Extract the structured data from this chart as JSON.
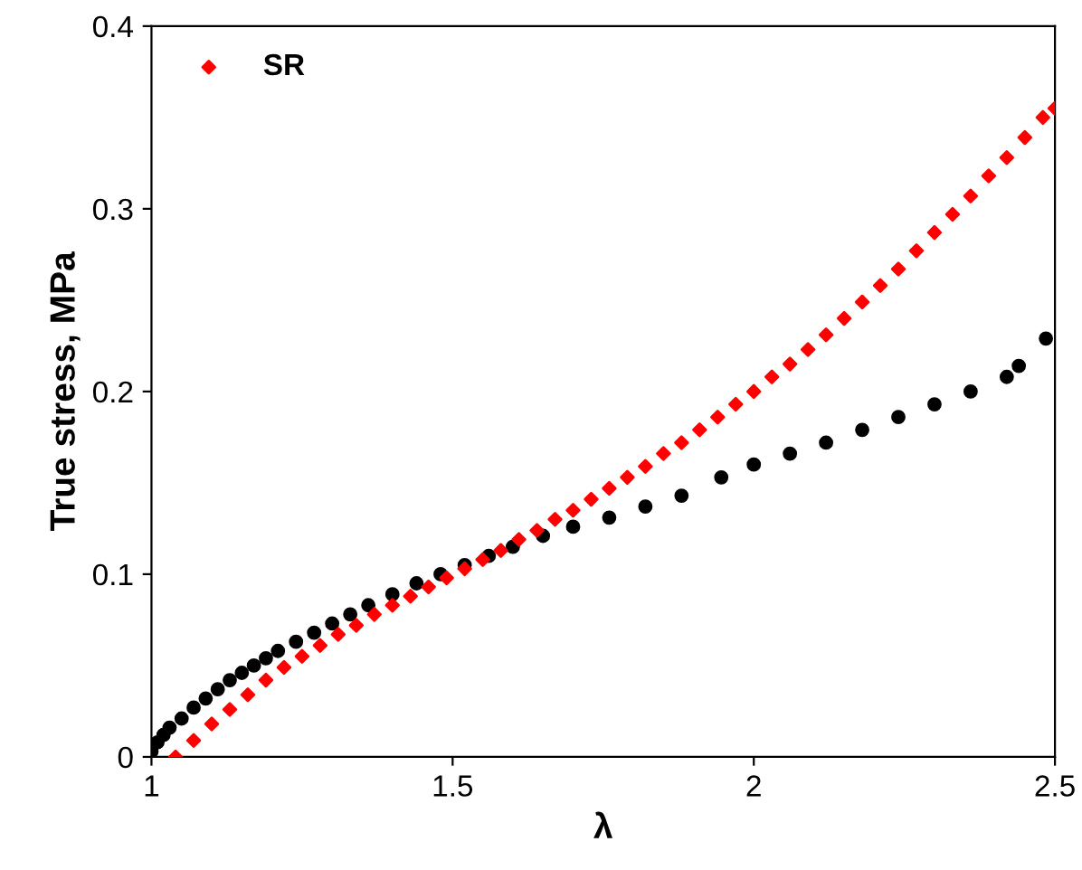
{
  "chart_data": {
    "type": "scatter",
    "xlabel": "λ",
    "ylabel": "True stress, MPa",
    "xlim": [
      1,
      2.5
    ],
    "xticks": [
      1,
      1.5,
      2,
      2.5
    ],
    "ylim": [
      0,
      0.4
    ],
    "yticks": [
      0,
      0.1,
      0.2,
      0.3,
      0.4
    ],
    "grid": false,
    "legend": "top left",
    "series": [
      {
        "color": "#000000",
        "marker": "circle",
        "x": [
          1.0,
          1.01,
          1.02,
          1.03,
          1.05,
          1.07,
          1.09,
          1.11,
          1.13,
          1.15,
          1.17,
          1.19,
          1.21,
          1.24,
          1.27,
          1.3,
          1.33,
          1.36,
          1.4,
          1.44,
          1.48,
          1.52,
          1.56,
          1.6,
          1.65,
          1.7,
          1.76,
          1.82,
          1.88,
          1.946,
          2.0,
          2.06,
          2.12,
          2.18,
          2.24,
          2.3,
          2.36,
          2.42,
          2.44,
          2.485
        ],
        "values": [
          0.003,
          0.008,
          0.012,
          0.016,
          0.021,
          0.027,
          0.032,
          0.037,
          0.042,
          0.046,
          0.05,
          0.054,
          0.058,
          0.063,
          0.068,
          0.073,
          0.078,
          0.083,
          0.089,
          0.095,
          0.1,
          0.105,
          0.11,
          0.115,
          0.121,
          0.126,
          0.131,
          0.137,
          0.143,
          0.153,
          0.16,
          0.166,
          0.172,
          0.179,
          0.186,
          0.193,
          0.2,
          0.208,
          0.214,
          0.229
        ]
      },
      {
        "name": "SR",
        "color": "#ff0000",
        "marker": "diamond",
        "x": [
          1.04,
          1.07,
          1.1,
          1.13,
          1.16,
          1.19,
          1.22,
          1.25,
          1.28,
          1.31,
          1.34,
          1.37,
          1.4,
          1.43,
          1.46,
          1.49,
          1.52,
          1.55,
          1.58,
          1.61,
          1.64,
          1.67,
          1.7,
          1.73,
          1.76,
          1.79,
          1.82,
          1.85,
          1.88,
          1.91,
          1.94,
          1.97,
          2.0,
          2.03,
          2.06,
          2.09,
          2.12,
          2.15,
          2.18,
          2.21,
          2.24,
          2.27,
          2.3,
          2.33,
          2.36,
          2.39,
          2.42,
          2.45,
          2.48,
          2.5
        ],
        "values": [
          0.0,
          0.009,
          0.018,
          0.026,
          0.034,
          0.042,
          0.049,
          0.055,
          0.061,
          0.067,
          0.072,
          0.078,
          0.083,
          0.088,
          0.093,
          0.098,
          0.103,
          0.108,
          0.113,
          0.119,
          0.124,
          0.13,
          0.135,
          0.141,
          0.147,
          0.153,
          0.159,
          0.166,
          0.172,
          0.179,
          0.186,
          0.193,
          0.2,
          0.208,
          0.215,
          0.223,
          0.231,
          0.24,
          0.249,
          0.258,
          0.267,
          0.277,
          0.287,
          0.297,
          0.307,
          0.318,
          0.328,
          0.339,
          0.35,
          0.355
        ]
      }
    ]
  }
}
